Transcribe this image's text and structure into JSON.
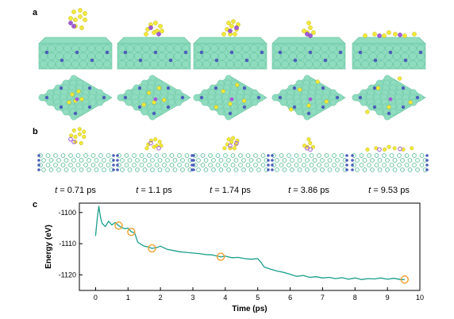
{
  "figure": {
    "panels": [
      {
        "letter": "a"
      },
      {
        "letter": "b"
      },
      {
        "letter": "c"
      }
    ],
    "time_prefix": "t",
    "time_labels": [
      "= 0.71 ps",
      "= 1.1 ps",
      "= 1.74 ps",
      "= 3.86 ps",
      "= 9.53 ps"
    ]
  },
  "colors": {
    "slab": "#8fdcbf",
    "slab_dark": "#5fbf9a",
    "dopant": "#4b5fb8",
    "sulfur": "#f2ea3a",
    "sodium": "#a45bd6",
    "curve": "#1a9e8a",
    "marker": "#f0a030"
  },
  "chart_data": {
    "type": "line",
    "xlabel": "Time (ps)",
    "ylabel": "Energy (eV)",
    "xlim": [
      -0.5,
      10
    ],
    "ylim": [
      -1125,
      -1097
    ],
    "xticks": [
      0,
      1,
      2,
      3,
      4,
      5,
      6,
      7,
      8,
      9,
      10
    ],
    "yticks": [
      -1100,
      -1110,
      -1120
    ],
    "series": [
      {
        "x": [
          0.0,
          0.05,
          0.1,
          0.15,
          0.2,
          0.3,
          0.4,
          0.5,
          0.6,
          0.71,
          0.8,
          0.9,
          1.0,
          1.1,
          1.2,
          1.3,
          1.4,
          1.5,
          1.6,
          1.74,
          1.9,
          2.0,
          2.2,
          2.4,
          2.6,
          2.8,
          3.0,
          3.2,
          3.4,
          3.6,
          3.86,
          4.0,
          4.2,
          4.4,
          4.6,
          4.8,
          5.0,
          5.1,
          5.2,
          5.4,
          5.6,
          5.8,
          6.0,
          6.2,
          6.4,
          6.6,
          6.8,
          7.0,
          7.2,
          7.4,
          7.6,
          7.8,
          8.0,
          8.2,
          8.4,
          8.6,
          8.8,
          9.0,
          9.2,
          9.4,
          9.53
        ],
        "y": [
          -1107.5,
          -1102.0,
          -1098.0,
          -1101.5,
          -1103.5,
          -1104.5,
          -1102.8,
          -1104.0,
          -1103.2,
          -1104.2,
          -1104.8,
          -1105.2,
          -1105.0,
          -1106.2,
          -1106.5,
          -1109.5,
          -1110.2,
          -1110.8,
          -1111.0,
          -1111.5,
          -1111.2,
          -1110.8,
          -1111.8,
          -1112.2,
          -1112.6,
          -1112.8,
          -1113.0,
          -1113.2,
          -1113.5,
          -1113.6,
          -1114.2,
          -1114.0,
          -1114.5,
          -1114.4,
          -1114.8,
          -1115.0,
          -1114.8,
          -1116.0,
          -1117.5,
          -1118.2,
          -1118.8,
          -1119.2,
          -1119.8,
          -1120.5,
          -1120.2,
          -1120.8,
          -1120.6,
          -1121.0,
          -1120.8,
          -1121.2,
          -1120.9,
          -1121.4,
          -1121.0,
          -1121.5,
          -1121.2,
          -1121.3,
          -1121.0,
          -1121.4,
          -1121.1,
          -1121.5,
          -1121.5
        ]
      }
    ],
    "markers": {
      "x": [
        0.71,
        1.1,
        1.74,
        3.86,
        9.53
      ],
      "y": [
        -1104.2,
        -1106.2,
        -1111.5,
        -1114.2,
        -1121.5
      ]
    }
  }
}
